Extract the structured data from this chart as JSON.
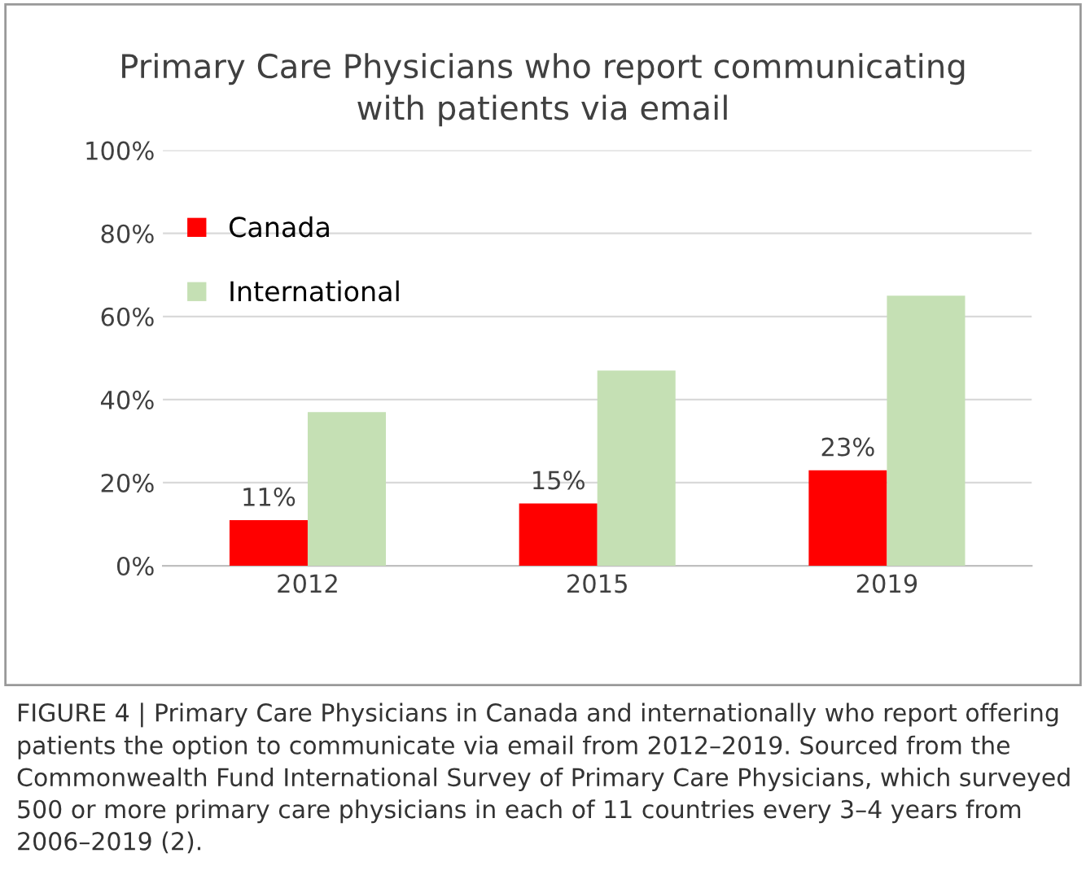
{
  "chart_data": {
    "type": "bar",
    "title": "Primary Care Physicians who report communicating\nwith patients via email",
    "categories": [
      "2012",
      "2015",
      "2019"
    ],
    "series": [
      {
        "name": "Canada",
        "color": "#ff0000",
        "values": [
          11,
          15,
          23
        ],
        "value_labels": [
          "11%",
          "15%",
          "23%"
        ]
      },
      {
        "name": "International",
        "color": "#c5e0b4",
        "values": [
          37,
          47,
          65
        ]
      }
    ],
    "ylim": [
      0,
      100
    ],
    "yticks": [
      {
        "value": 0,
        "label": "0%"
      },
      {
        "value": 20,
        "label": "20%"
      },
      {
        "value": 40,
        "label": "40%"
      },
      {
        "value": 60,
        "label": "60%"
      },
      {
        "value": 80,
        "label": "80%"
      },
      {
        "value": 100,
        "label": "100%"
      }
    ],
    "grid": "y",
    "legend": "top left",
    "annotations": [
      "FIGURE 4 | Primary Care Physicians in Canada and internationally who report offering patients the option to communicate via email from 2012–2019. Sourced from the Commonwealth Fund International Survey of Primary Care Physicians, which surveyed 500 or more primary care physicians in each of 11 countries every 3–4 years from 2006–2019 (2)."
    ]
  }
}
